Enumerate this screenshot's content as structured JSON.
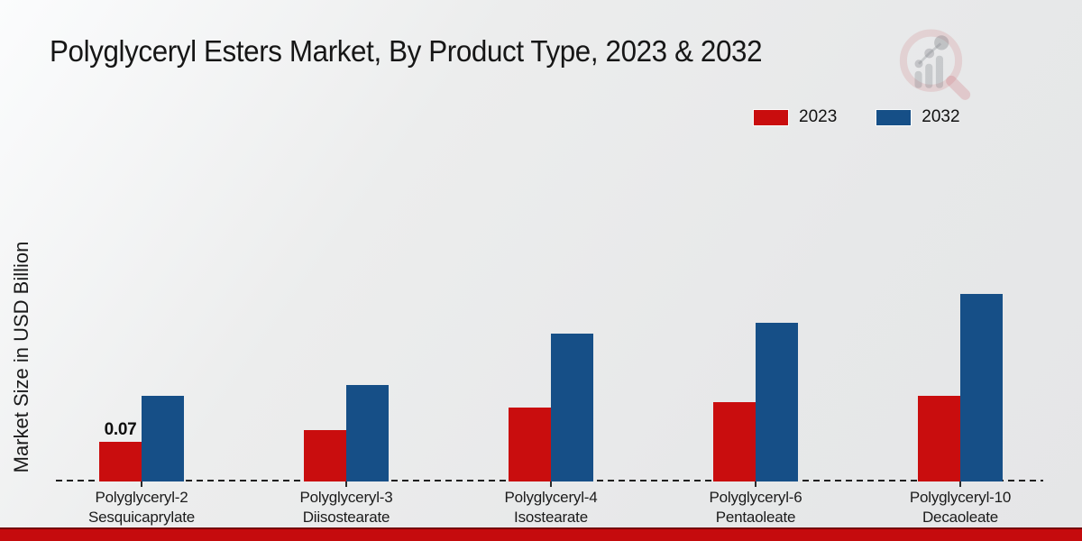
{
  "chart_data": {
    "type": "bar",
    "title": "Polyglyceryl Esters Market, By Product Type, 2023 & 2032",
    "xlabel": "",
    "ylabel": "Market Size in USD Billion",
    "ylim": [
      0,
      0.36
    ],
    "grid": false,
    "baseline_style": "dashed",
    "legend_position": "top-right",
    "categories": [
      "Polyglyceryl-2\nSesquicaprylate",
      "Polyglyceryl-3\nDiisostearate",
      "Polyglyceryl-4\nIsostearate",
      "Polyglyceryl-6\nPentaoleate",
      "Polyglyceryl-10\nDecaoleate"
    ],
    "series": [
      {
        "name": "2023",
        "color": "#c90d0e",
        "values": [
          0.07,
          0.09,
          0.13,
          0.14,
          0.15
        ]
      },
      {
        "name": "2032",
        "color": "#164f87",
        "values": [
          0.15,
          0.17,
          0.26,
          0.28,
          0.33
        ]
      }
    ],
    "value_labels": [
      [
        "0.07",
        "",
        "",
        "",
        ""
      ],
      [
        "",
        "",
        "",
        "",
        ""
      ]
    ]
  },
  "footer": {
    "accent_color": "#c50b0d"
  },
  "watermark": {
    "icon": "magnifier-bar-chart-logo"
  }
}
